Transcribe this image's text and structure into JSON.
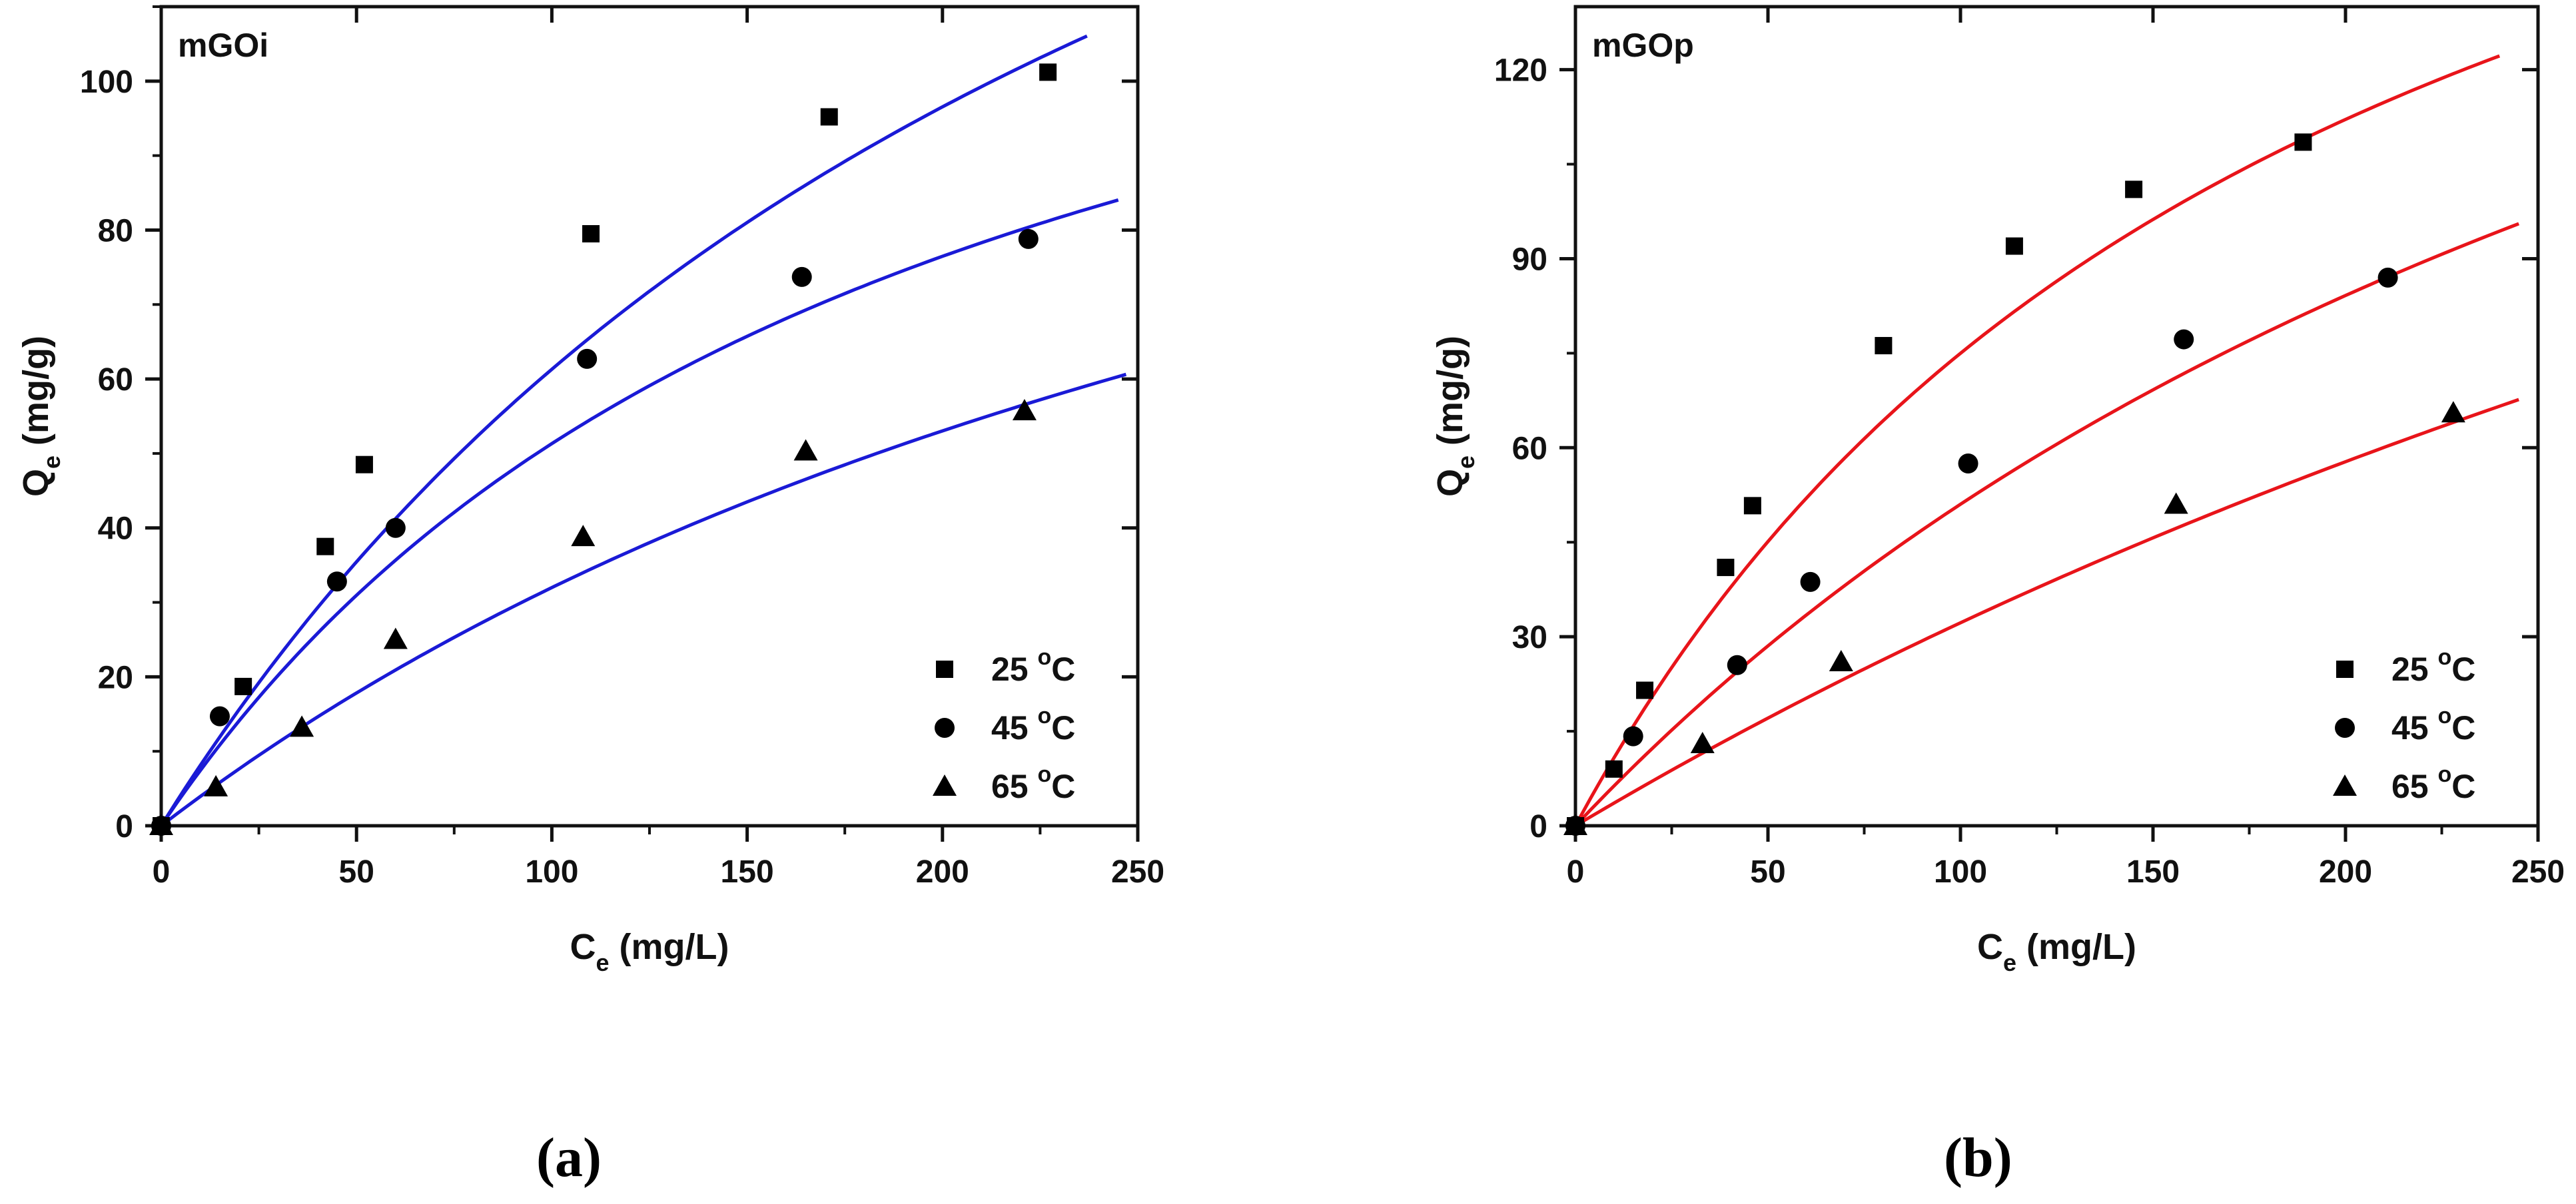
{
  "chart_data": [
    {
      "type": "scatter",
      "panel_label": "mGOi",
      "caption": "(a)",
      "xlabel": {
        "main": "C",
        "sub": "e",
        "unit": " (mg/L)"
      },
      "ylabel": {
        "main": "Q",
        "sub": "e",
        "unit": " (mg/g)"
      },
      "xlim": [
        0,
        250
      ],
      "ylim": [
        0,
        110
      ],
      "xticks": [
        0,
        50,
        100,
        150,
        200,
        250
      ],
      "yticks": [
        0,
        20,
        40,
        60,
        80,
        100
      ],
      "fit_color": "#1a1ad6",
      "legend_position": "bottom-right",
      "series": [
        {
          "name": "25 °C",
          "label_num": "25 ",
          "label_deg": "o",
          "label_unit": "C",
          "marker": "square",
          "x": [
            0,
            21,
            42,
            52,
            110,
            171,
            227
          ],
          "y": [
            0,
            18.7,
            37.5,
            48.5,
            79.5,
            95.2,
            101.2
          ],
          "fit": {
            "qmax": 227,
            "kl": 0.0037,
            "xmax": 237
          }
        },
        {
          "name": "45 °C",
          "label_num": "45 ",
          "label_deg": "o",
          "label_unit": "C",
          "marker": "circle",
          "x": [
            0,
            15,
            45,
            60,
            109,
            164,
            222
          ],
          "y": [
            0,
            14.7,
            32.8,
            40,
            62.7,
            73.7,
            78.8
          ],
          "fit": {
            "qmax": 150,
            "kl": 0.0052,
            "xmax": 245
          }
        },
        {
          "name": "65 °C",
          "label_num": "65 ",
          "label_deg": "o",
          "label_unit": "C",
          "marker": "triangle",
          "x": [
            0,
            14,
            36,
            60,
            108,
            165,
            221
          ],
          "y": [
            0,
            5.2,
            13.2,
            25,
            38.8,
            50.3,
            55.7
          ],
          "fit": {
            "qmax": 155,
            "kl": 0.0026,
            "xmax": 247
          }
        }
      ]
    },
    {
      "type": "scatter",
      "panel_label": "mGOp",
      "caption": "(b)",
      "xlabel": {
        "main": "C",
        "sub": "e",
        "unit": " (mg/L)"
      },
      "ylabel": {
        "main": "Q",
        "sub": "e",
        "unit": " (mg/g)"
      },
      "xlim": [
        0,
        250
      ],
      "ylim": [
        0,
        130
      ],
      "xticks": [
        0,
        50,
        100,
        150,
        200,
        250
      ],
      "yticks": [
        0,
        30,
        60,
        90,
        120
      ],
      "fit_color": "#e8141a",
      "legend_position": "bottom-right",
      "series": [
        {
          "name": "25 °C",
          "label_num": "25 ",
          "label_deg": "o",
          "label_unit": "C",
          "marker": "square",
          "x": [
            0,
            10,
            18,
            39,
            46,
            80,
            114,
            145,
            189
          ],
          "y": [
            0,
            9,
            21.5,
            41,
            50.8,
            76.2,
            92,
            101,
            108.5
          ],
          "fit": {
            "qmax": 222,
            "kl": 0.0051,
            "xmax": 240
          }
        },
        {
          "name": "45 °C",
          "label_num": "45 ",
          "label_deg": "o",
          "label_unit": "C",
          "marker": "circle",
          "x": [
            0,
            15,
            42,
            61,
            102,
            158,
            211
          ],
          "y": [
            0,
            14.2,
            25.5,
            38.7,
            57.5,
            77.2,
            87
          ],
          "fit": {
            "qmax": 240,
            "kl": 0.0027,
            "xmax": 245
          }
        },
        {
          "name": "65 °C",
          "label_num": "65 ",
          "label_deg": "o",
          "label_unit": "C",
          "marker": "triangle",
          "x": [
            0,
            33,
            69,
            156,
            228
          ],
          "y": [
            0,
            13,
            26,
            51,
            65.5
          ],
          "fit": {
            "qmax": 280,
            "kl": 0.0013,
            "xmax": 245
          }
        }
      ]
    }
  ]
}
